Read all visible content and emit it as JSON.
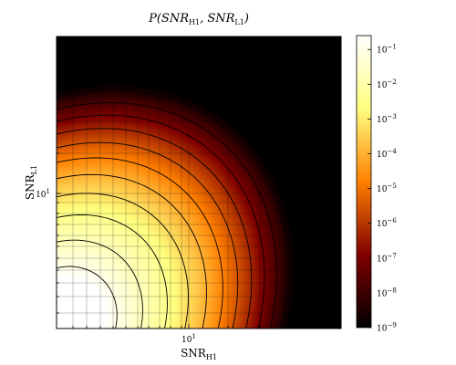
{
  "chart_data": {
    "type": "heatmap",
    "title": "P(SNR_H1, SNR_L1)",
    "xlabel": "SNR_H1",
    "ylabel": "SNR_L1",
    "x_scale": "log",
    "y_scale": "log",
    "x_tick_labels": [
      "10^1"
    ],
    "y_tick_labels": [
      "10^1"
    ],
    "grid": true,
    "colormap": "afmhot",
    "colorbar": {
      "scale": "log",
      "range": [
        "10^-9",
        "10^-0.6"
      ],
      "tick_labels": [
        "10^-1",
        "10^-2",
        "10^-3",
        "10^-4",
        "10^-5",
        "10^-6",
        "10^-7",
        "10^-8",
        "10^-9"
      ]
    },
    "contours": true
  },
  "colors": {
    "low": "#000000",
    "mid": "#ff8000",
    "high": "#ffffff"
  }
}
